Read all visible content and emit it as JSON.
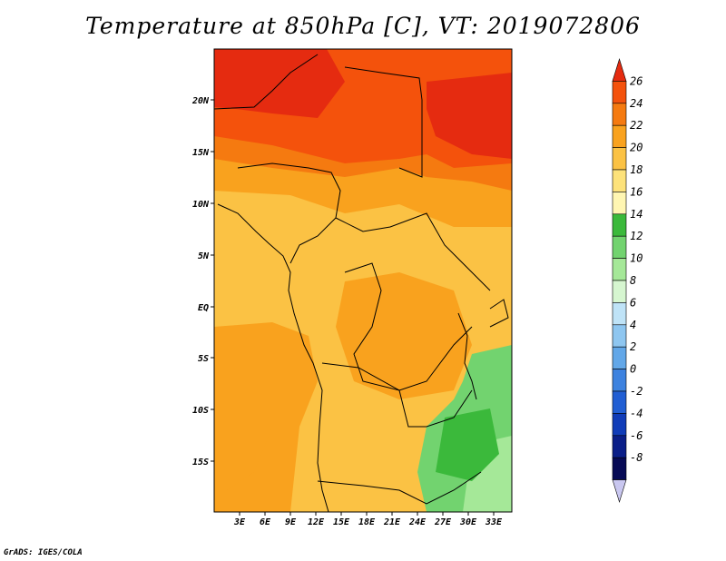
{
  "title": "Temperature at 850hPa [C], VT: 2019072806",
  "footer": "GrADS: IGES/COLA",
  "map": {
    "lon_labels": [
      "3E",
      "6E",
      "9E",
      "12E",
      "15E",
      "18E",
      "21E",
      "24E",
      "27E",
      "30E",
      "33E"
    ],
    "lat_labels": [
      "20N",
      "15N",
      "10N",
      "5N",
      "EQ",
      "5S",
      "10S",
      "15S"
    ]
  },
  "colorbar": {
    "labels": [
      "26",
      "24",
      "22",
      "20",
      "18",
      "16",
      "14",
      "12",
      "10",
      "8",
      "6",
      "4",
      "2",
      "0",
      "-2",
      "-4",
      "-6",
      "-8"
    ],
    "colors": [
      "#e52b10",
      "#f4520c",
      "#f57a10",
      "#f9a21e",
      "#fbc244",
      "#fde27a",
      "#fff6b2",
      "#3bb93b",
      "#72d36f",
      "#a5e898",
      "#d6f6d0",
      "#bfe3f7",
      "#8ec6f0",
      "#62a7e8",
      "#3d82df",
      "#215ed3",
      "#103cb8",
      "#0a1e88",
      "#060a55",
      "#c9c7f0"
    ]
  }
}
